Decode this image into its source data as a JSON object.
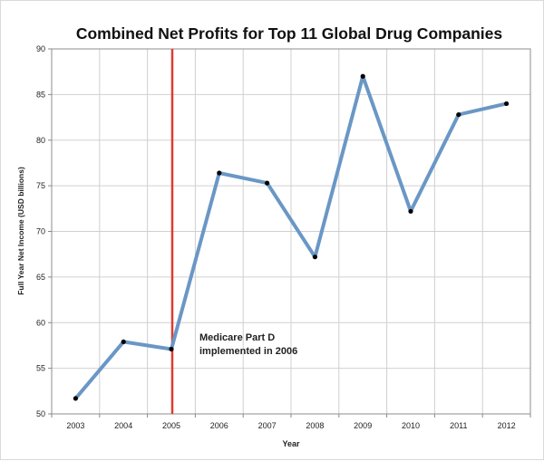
{
  "chart_data": {
    "type": "line",
    "title": "Combined Net Profits for Top 11 Global Drug Companies",
    "xlabel": "Year",
    "ylabel": "Full Year Net Income (USD billions)",
    "ylim": [
      50,
      90
    ],
    "yticks": [
      50,
      55,
      60,
      65,
      70,
      75,
      80,
      85,
      90
    ],
    "grid": true,
    "x": [
      "2003",
      "2004",
      "2005",
      "2006",
      "2007",
      "2008",
      "2009",
      "2010",
      "2011",
      "2012"
    ],
    "series": [
      {
        "values": [
          51.7,
          57.9,
          57.1,
          76.4,
          75.3,
          67.2,
          87.0,
          72.2,
          82.8,
          84.0
        ],
        "color": "#6a97c5"
      }
    ],
    "marker_line": {
      "x": "2005",
      "color": "#e03b30"
    },
    "annotation": {
      "line1": "Medicare Part D",
      "line2": "implemented in 2006"
    }
  }
}
